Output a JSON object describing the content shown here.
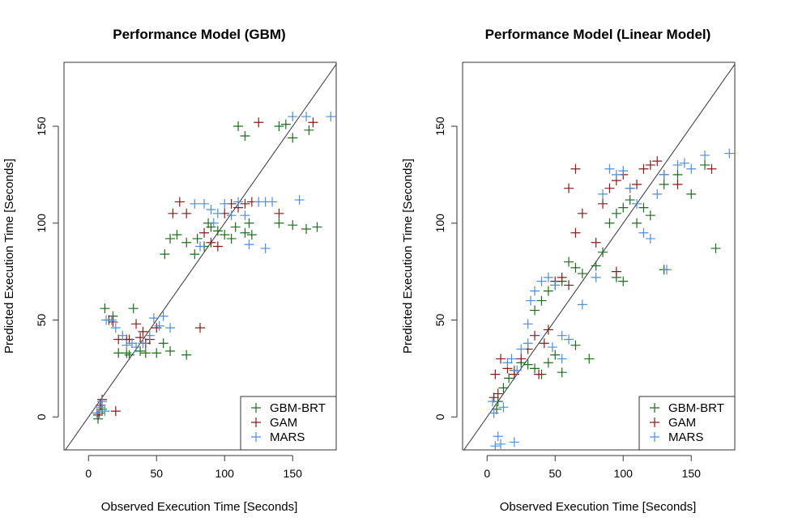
{
  "chart_data": [
    {
      "type": "scatter",
      "title": "Performance Model (GBM)",
      "xlabel": "Observed Execution Time [Seconds]",
      "ylabel": "Predicted Execution Time [Seconds]",
      "xlim": [
        -18,
        182
      ],
      "ylim": [
        -17,
        183
      ],
      "xticks": [
        "0",
        "50",
        "100",
        "150"
      ],
      "yticks": [
        "0",
        "50",
        "100",
        "150"
      ],
      "identity_line": true,
      "legend_position": "bottom-right",
      "series": [
        {
          "name": "GBM-BRT",
          "color": "#1a6e1a",
          "points": [
            [
              7,
              -1
            ],
            [
              8,
              2
            ],
            [
              10,
              4
            ],
            [
              12,
              56
            ],
            [
              18,
              52
            ],
            [
              22,
              33
            ],
            [
              28,
              33
            ],
            [
              30,
              32
            ],
            [
              33,
              56
            ],
            [
              38,
              34
            ],
            [
              42,
              33
            ],
            [
              50,
              33
            ],
            [
              55,
              38
            ],
            [
              60,
              34
            ],
            [
              72,
              32
            ],
            [
              56,
              84
            ],
            [
              60,
              92
            ],
            [
              65,
              94
            ],
            [
              72,
              90
            ],
            [
              78,
              84
            ],
            [
              85,
              88
            ],
            [
              90,
              98
            ],
            [
              95,
              96
            ],
            [
              100,
              94
            ],
            [
              105,
              92
            ],
            [
              108,
              98
            ],
            [
              115,
              95
            ],
            [
              118,
              100
            ],
            [
              120,
              94
            ],
            [
              140,
              100
            ],
            [
              150,
              99
            ],
            [
              160,
              97
            ],
            [
              168,
              98
            ],
            [
              110,
              150
            ],
            [
              115,
              145
            ],
            [
              140,
              150
            ],
            [
              145,
              151
            ],
            [
              150,
              144
            ],
            [
              162,
              148
            ],
            [
              80,
              92
            ],
            [
              88,
              100
            ]
          ]
        },
        {
          "name": "GAM",
          "color": "#8b1a1a",
          "points": [
            [
              7,
              1
            ],
            [
              9,
              6
            ],
            [
              10,
              9
            ],
            [
              15,
              50
            ],
            [
              18,
              49
            ],
            [
              22,
              40
            ],
            [
              30,
              40
            ],
            [
              35,
              48
            ],
            [
              38,
              41
            ],
            [
              40,
              44
            ],
            [
              42,
              38
            ],
            [
              45,
              40
            ],
            [
              50,
              46
            ],
            [
              82,
              46
            ],
            [
              62,
              105
            ],
            [
              67,
              111
            ],
            [
              72,
              105
            ],
            [
              85,
              95
            ],
            [
              90,
              90
            ],
            [
              95,
              88
            ],
            [
              100,
              105
            ],
            [
              105,
              110
            ],
            [
              110,
              108
            ],
            [
              115,
              110
            ],
            [
              120,
              111
            ],
            [
              125,
              152
            ],
            [
              140,
              105
            ],
            [
              165,
              152
            ],
            [
              20,
              3
            ],
            [
              28,
              40
            ]
          ]
        },
        {
          "name": "MARS",
          "color": "#4a8fe0",
          "points": [
            [
              6,
              2
            ],
            [
              8,
              5
            ],
            [
              10,
              8
            ],
            [
              12,
              3
            ],
            [
              13,
              50
            ],
            [
              17,
              50
            ],
            [
              20,
              46
            ],
            [
              25,
              42
            ],
            [
              28,
              37
            ],
            [
              32,
              38
            ],
            [
              35,
              36
            ],
            [
              40,
              38
            ],
            [
              45,
              42
            ],
            [
              48,
              51
            ],
            [
              52,
              47
            ],
            [
              55,
              52
            ],
            [
              60,
              46
            ],
            [
              78,
              110
            ],
            [
              85,
              110
            ],
            [
              90,
              107
            ],
            [
              95,
              105
            ],
            [
              100,
              110
            ],
            [
              105,
              104
            ],
            [
              110,
              111
            ],
            [
              115,
              104
            ],
            [
              125,
              111
            ],
            [
              130,
              111
            ],
            [
              135,
              111
            ],
            [
              130,
              87
            ],
            [
              155,
              112
            ],
            [
              150,
              155
            ],
            [
              160,
              155
            ],
            [
              178,
              155
            ],
            [
              82,
              88
            ],
            [
              92,
              100
            ],
            [
              118,
              89
            ]
          ]
        }
      ]
    },
    {
      "type": "scatter",
      "title": "Performance Model (Linear Model)",
      "xlabel": "Observed Execution Time [Seconds]",
      "ylabel": "Predicted Execution Time [Seconds]",
      "xlim": [
        -18,
        182
      ],
      "ylim": [
        -17,
        183
      ],
      "xticks": [
        "0",
        "50",
        "100",
        "150"
      ],
      "yticks": [
        "0",
        "50",
        "100",
        "150"
      ],
      "identity_line": true,
      "legend_position": "bottom-right",
      "series": [
        {
          "name": "GBM-BRT",
          "color": "#1a6e1a",
          "points": [
            [
              7,
              4
            ],
            [
              8,
              8
            ],
            [
              12,
              15
            ],
            [
              16,
              20
            ],
            [
              20,
              24
            ],
            [
              25,
              28
            ],
            [
              30,
              27
            ],
            [
              35,
              25
            ],
            [
              40,
              22
            ],
            [
              45,
              28
            ],
            [
              50,
              32
            ],
            [
              55,
              23
            ],
            [
              65,
              37
            ],
            [
              75,
              30
            ],
            [
              35,
              55
            ],
            [
              40,
              60
            ],
            [
              45,
              65
            ],
            [
              50,
              68
            ],
            [
              55,
              70
            ],
            [
              60,
              80
            ],
            [
              65,
              77
            ],
            [
              70,
              74
            ],
            [
              80,
              78
            ],
            [
              85,
              85
            ],
            [
              90,
              100
            ],
            [
              95,
              105
            ],
            [
              100,
              108
            ],
            [
              105,
              112
            ],
            [
              110,
              100
            ],
            [
              115,
              108
            ],
            [
              120,
              104
            ],
            [
              130,
              120
            ],
            [
              140,
              125
            ],
            [
              150,
              115
            ],
            [
              160,
              130
            ],
            [
              168,
              87
            ],
            [
              130,
              76
            ],
            [
              95,
              72
            ],
            [
              100,
              70
            ]
          ]
        },
        {
          "name": "GAM",
          "color": "#8b1a1a",
          "points": [
            [
              5,
              10
            ],
            [
              6,
              22
            ],
            [
              8,
              12
            ],
            [
              10,
              30
            ],
            [
              15,
              25
            ],
            [
              20,
              22
            ],
            [
              25,
              30
            ],
            [
              30,
              35
            ],
            [
              35,
              42
            ],
            [
              38,
              22
            ],
            [
              42,
              38
            ],
            [
              45,
              45
            ],
            [
              50,
              70
            ],
            [
              55,
              72
            ],
            [
              60,
              68
            ],
            [
              65,
              95
            ],
            [
              70,
              105
            ],
            [
              80,
              90
            ],
            [
              85,
              110
            ],
            [
              90,
              118
            ],
            [
              95,
              122
            ],
            [
              100,
              125
            ],
            [
              105,
              118
            ],
            [
              110,
              120
            ],
            [
              115,
              128
            ],
            [
              120,
              130
            ],
            [
              125,
              132
            ],
            [
              130,
              125
            ],
            [
              140,
              120
            ],
            [
              165,
              128
            ],
            [
              65,
              128
            ],
            [
              60,
              118
            ],
            [
              95,
              75
            ]
          ]
        },
        {
          "name": "MARS",
          "color": "#4a8fe0",
          "points": [
            [
              4,
              8
            ],
            [
              5,
              2
            ],
            [
              6,
              -15
            ],
            [
              8,
              -10
            ],
            [
              10,
              -14
            ],
            [
              12,
              5
            ],
            [
              15,
              28
            ],
            [
              18,
              30
            ],
            [
              20,
              -13
            ],
            [
              22,
              24
            ],
            [
              25,
              35
            ],
            [
              30,
              38
            ],
            [
              32,
              60
            ],
            [
              35,
              65
            ],
            [
              40,
              70
            ],
            [
              45,
              72
            ],
            [
              50,
              68
            ],
            [
              55,
              42
            ],
            [
              60,
              40
            ],
            [
              70,
              58
            ],
            [
              80,
              72
            ],
            [
              85,
              115
            ],
            [
              90,
              128
            ],
            [
              95,
              125
            ],
            [
              100,
              127
            ],
            [
              105,
              118
            ],
            [
              110,
              110
            ],
            [
              115,
              95
            ],
            [
              120,
              92
            ],
            [
              125,
              115
            ],
            [
              130,
              125
            ],
            [
              140,
              130
            ],
            [
              145,
              131
            ],
            [
              150,
              128
            ],
            [
              160,
              135
            ],
            [
              178,
              136
            ],
            [
              132,
              76
            ],
            [
              55,
              30
            ],
            [
              48,
              36
            ],
            [
              30,
              48
            ]
          ]
        }
      ]
    }
  ]
}
